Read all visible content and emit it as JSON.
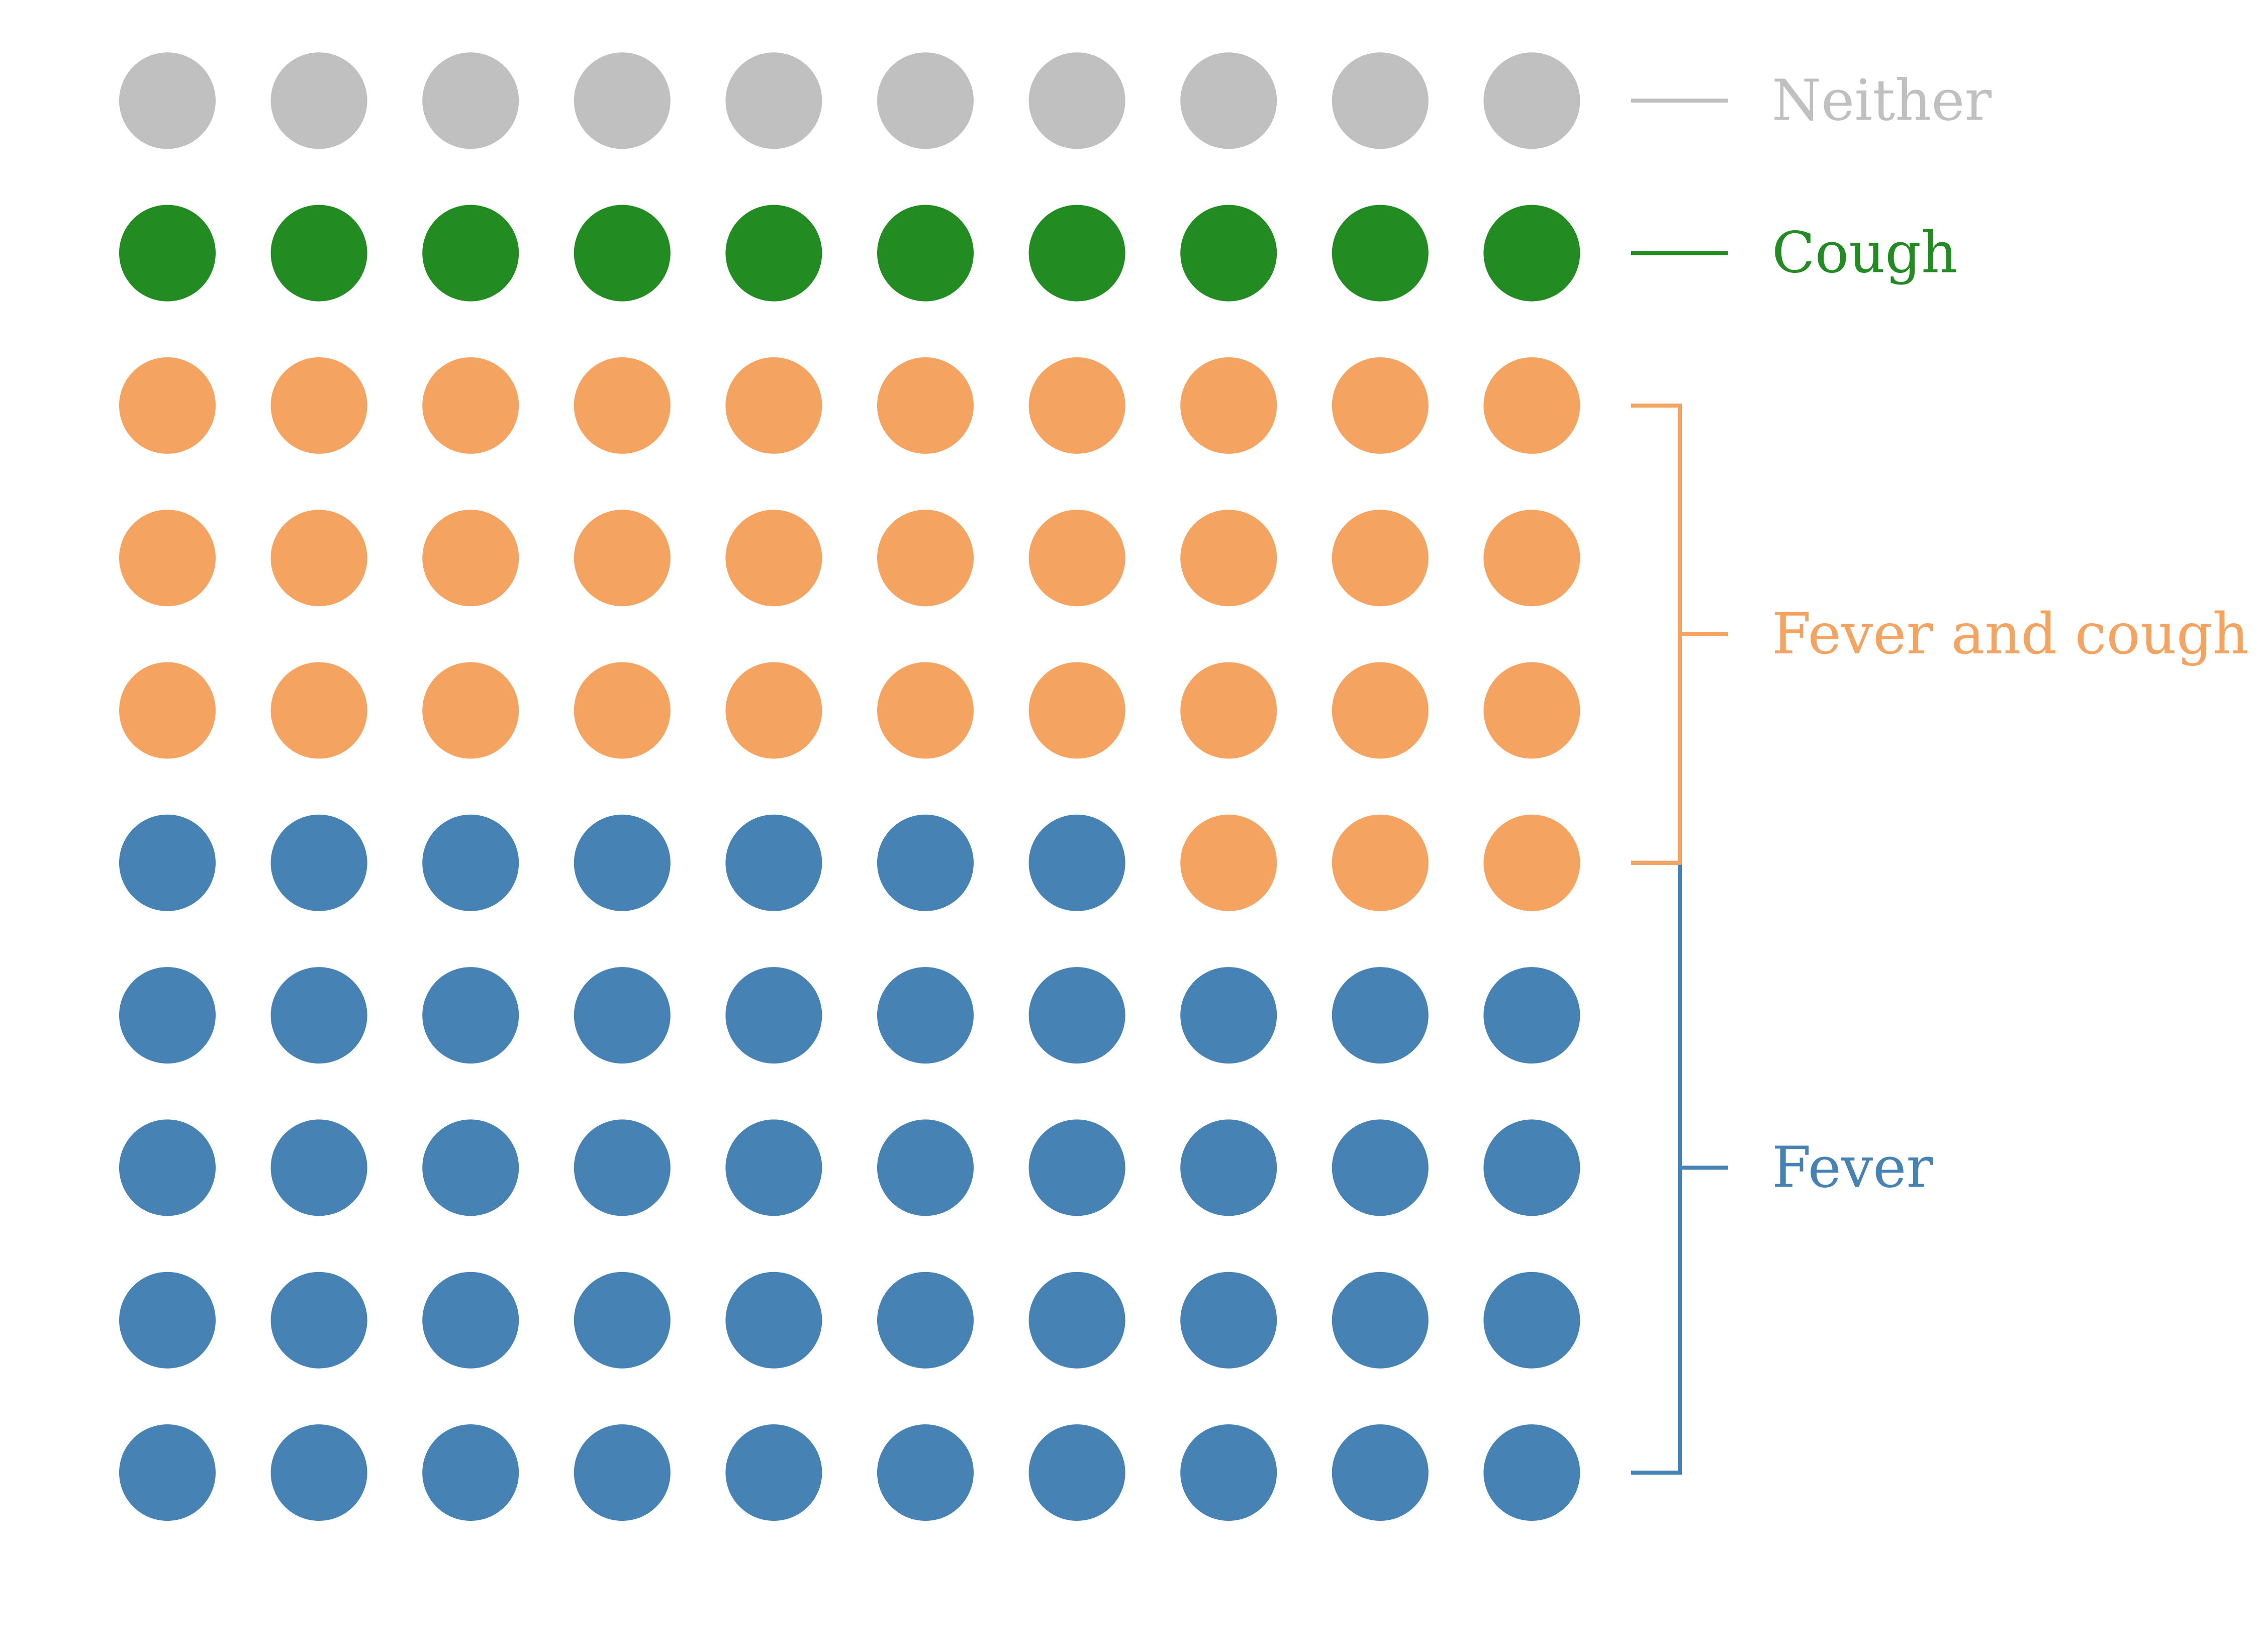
{
  "chart_data": {
    "type": "waffle",
    "grid": {
      "rows": 10,
      "columns": 10
    },
    "total": 100,
    "fill_order": "bottom-to-top, left-to-right",
    "categories": [
      {
        "name": "Fever",
        "count": 47,
        "color": "#4682b4"
      },
      {
        "name": "Fever and cough",
        "count": 33,
        "color": "#f4a460"
      },
      {
        "name": "Cough",
        "count": 10,
        "color": "#228b22"
      },
      {
        "name": "Neither",
        "count": 10,
        "color": "#c0c0c0"
      }
    ],
    "legend_placement": "right",
    "grid_lines": false,
    "title": "",
    "xlabel": "",
    "ylabel": ""
  }
}
